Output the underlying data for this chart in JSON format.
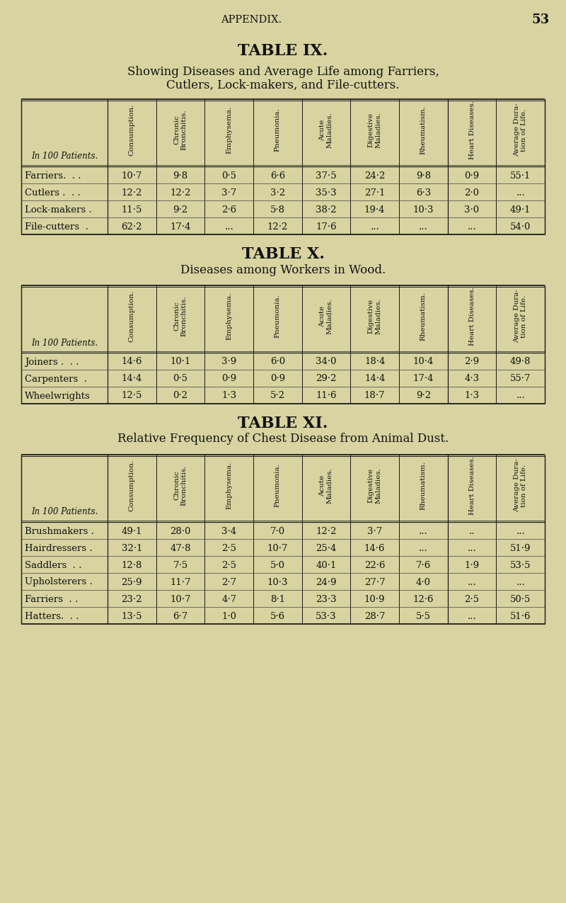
{
  "bg_color": "#d8d3a0",
  "page_header": "APPENDIX.",
  "page_number": "53",
  "table9": {
    "title": "TABLE IX.",
    "subtitle_line1": "Showing Diseases and Average Life among Farriers,",
    "subtitle_line2": "Cutlers, Lock-makers, and File-cutters.",
    "col_header": "In 100 Patients.",
    "columns": [
      "Consumption.",
      "Chronic\nBronchitis.",
      "Emphysema.",
      "Pneumonia.",
      "Acute\nMaladies.",
      "Digestive\nMaladies.",
      "Rheumatism.",
      "Heart Diseases.",
      "Average Dura-\ntion of Life."
    ],
    "rows": [
      {
        "label": "Farriers.  . .",
        "values": [
          "10·7",
          "9·8",
          "0·5",
          "6·6",
          "37·5",
          "24·2",
          "9·8",
          "0·9",
          "55·1"
        ]
      },
      {
        "label": "Cutlers .  . .",
        "values": [
          "12·2",
          "12·2",
          "3·7",
          "3·2",
          "35·3",
          "27·1",
          "6·3",
          "2·0",
          "..."
        ]
      },
      {
        "label": "Lock-makers .",
        "values": [
          "11·5",
          "9·2",
          "2·6",
          "5·8",
          "38·2",
          "19·4",
          "10·3",
          "3·0",
          "49·1"
        ]
      },
      {
        "label": "File-cutters  .",
        "values": [
          "62·2",
          "17·4",
          "...",
          "12·2",
          "17·6",
          "...",
          "...",
          "...",
          "54·0"
        ]
      }
    ]
  },
  "table10": {
    "title": "TABLE X.",
    "subtitle_line1": "Diseases among Workers in Wood.",
    "subtitle_line2": null,
    "col_header": "In 100 Patients.",
    "columns": [
      "Consumption.",
      "Chronic\nBronchitis.",
      "Emphysema.",
      "Pneumonia.",
      "Acute\nMaladies.",
      "Digestive\nMaladies.",
      "Rheumatism.",
      "Heart Diseases.",
      "Average Dura-\ntion of Life."
    ],
    "rows": [
      {
        "label": "Joiners .  . .",
        "values": [
          "14·6",
          "10·1",
          "3·9",
          "6·0",
          "34·0",
          "18·4",
          "10·4",
          "2·9",
          "49·8"
        ]
      },
      {
        "label": "Carpenters  .",
        "values": [
          "14·4",
          "0·5",
          "0·9",
          "0·9",
          "29·2",
          "14·4",
          "17·4",
          "4·3",
          "55·7"
        ]
      },
      {
        "label": "Wheelwrights",
        "values": [
          "12·5",
          "0·2",
          "1·3",
          "5·2",
          "11·6",
          "18·7",
          "9·2",
          "1·3",
          "..."
        ]
      }
    ]
  },
  "table11": {
    "title": "TABLE XI.",
    "subtitle_line1": "Relative Frequency of Chest Disease from Animal Dust.",
    "subtitle_line2": null,
    "col_header": "In 100 Patients.",
    "columns": [
      "Consumption.",
      "Chronic\nBronchitis.",
      "Emphysema.",
      "Pneumonia.",
      "Acute\nMaladies.",
      "Digestive\nMaladies.",
      "Rheumatism.",
      "Heart Diseases.",
      "Average Dura-\ntion of Life."
    ],
    "rows": [
      {
        "label": "Brushmakers .",
        "values": [
          "49·1",
          "28·0",
          "3·4",
          "7·0",
          "12·2",
          "3·7",
          "...",
          "..",
          "..."
        ]
      },
      {
        "label": "Hairdressers .",
        "values": [
          "32·1",
          "47·8",
          "2·5",
          "10·7",
          "25·4",
          "14·6",
          "...",
          "...",
          "51·9"
        ]
      },
      {
        "label": "Saddlers  . .",
        "values": [
          "12·8",
          "7·5",
          "2·5",
          "5·0",
          "40·1",
          "22·6",
          "7·6",
          "1·9",
          "53·5"
        ]
      },
      {
        "label": "Upholsterers .",
        "values": [
          "25·9",
          "11·7",
          "2·7",
          "10·3",
          "24·9",
          "27·7",
          "4·0",
          "...",
          "..."
        ]
      },
      {
        "label": "Farriers  . .",
        "values": [
          "23·2",
          "10·7",
          "4·7",
          "8·1",
          "23·3",
          "10·9",
          "12·6",
          "2·5",
          "50·5"
        ]
      },
      {
        "label": "Hatters.  . .",
        "values": [
          "13·5",
          "6·7",
          "1·0",
          "5·6",
          "53·3",
          "28·7",
          "5·5",
          "...",
          "51·6"
        ]
      }
    ]
  }
}
